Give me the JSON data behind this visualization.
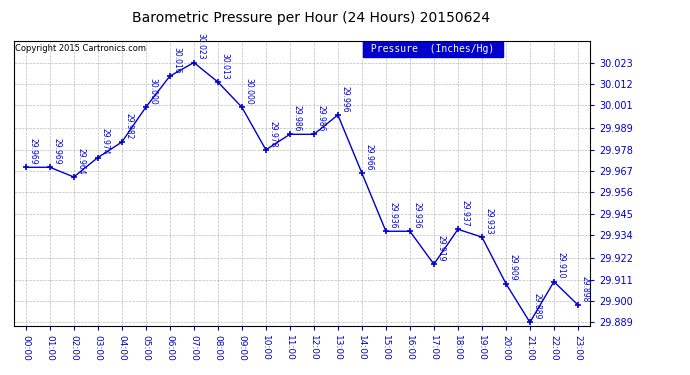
{
  "title": "Barometric Pressure per Hour (24 Hours) 20150624",
  "copyright": "Copyright 2015 Cartronics.com",
  "legend_label": "Pressure  (Inches/Hg)",
  "hours": [
    0,
    1,
    2,
    3,
    4,
    5,
    6,
    7,
    8,
    9,
    10,
    11,
    12,
    13,
    14,
    15,
    16,
    17,
    18,
    19,
    20,
    21,
    22,
    23
  ],
  "hour_labels": [
    "00:00",
    "01:00",
    "02:00",
    "03:00",
    "04:00",
    "05:00",
    "06:00",
    "07:00",
    "08:00",
    "09:00",
    "10:00",
    "11:00",
    "12:00",
    "13:00",
    "14:00",
    "15:00",
    "16:00",
    "17:00",
    "18:00",
    "19:00",
    "20:00",
    "21:00",
    "22:00",
    "23:00"
  ],
  "pressure": [
    29.969,
    29.969,
    29.964,
    29.974,
    29.982,
    30.0,
    30.016,
    30.023,
    30.013,
    30.0,
    29.978,
    29.986,
    29.986,
    29.996,
    29.966,
    29.936,
    29.936,
    29.919,
    29.937,
    29.933,
    29.909,
    29.889,
    29.91,
    29.898
  ],
  "ylim_min": 29.887,
  "ylim_max": 30.034,
  "yticks": [
    29.889,
    29.9,
    29.911,
    29.922,
    29.934,
    29.945,
    29.956,
    29.967,
    29.978,
    29.989,
    30.001,
    30.012,
    30.023
  ],
  "line_color": "#0000CC",
  "marker": "+",
  "bg_color": "#ffffff",
  "grid_color": "#aaaaaa",
  "text_color": "#0000CC",
  "title_color": "#000000",
  "legend_bg": "#0000CC",
  "legend_text": "#ffffff"
}
